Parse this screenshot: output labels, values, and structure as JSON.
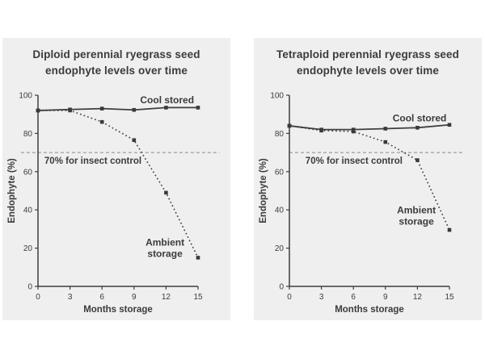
{
  "page": {
    "background": "#ffffff",
    "panel_background": "#efefef"
  },
  "colors": {
    "series_line": "#3f3f3f",
    "marker": "#3a3a3a",
    "axis": "#3f3f3f",
    "text": "#3b3b3b",
    "tick_text": "#3d3d3d",
    "threshold_line": "#9c9c9c"
  },
  "chart_data": [
    {
      "type": "line",
      "id": "diploid",
      "title_lines": [
        "Diploid perennial ryegrass seed",
        "endophyte levels over time"
      ],
      "xlabel": "Months storage",
      "ylabel": "Endophyte (%)",
      "xlim": [
        0,
        15
      ],
      "ylim": [
        0,
        100
      ],
      "x_ticks": [
        0,
        3,
        6,
        9,
        12,
        15
      ],
      "y_ticks": [
        0,
        20,
        40,
        60,
        80,
        100
      ],
      "grid": false,
      "legend_position": "inline-labels",
      "threshold": {
        "value": 70,
        "label": "70% for insect control",
        "label_x": 0.6,
        "extent_months": [
          -1.6,
          17.0
        ]
      },
      "months": [
        0,
        3,
        6,
        9,
        12,
        15
      ],
      "series": [
        {
          "id": "cool-stored",
          "name": "Cool stored",
          "style": "solid",
          "values": [
            92,
            92.5,
            93,
            92.3,
            93.5,
            93.5
          ],
          "label_lines": [
            "Cool stored"
          ],
          "label_pos": {
            "x": 12.1,
            "y": 97.5
          }
        },
        {
          "id": "ambient-storage",
          "name": "Ambient storage",
          "style": "dotted",
          "values": [
            92,
            92,
            86,
            76.5,
            49,
            15
          ],
          "label_lines": [
            "Ambient",
            "storage"
          ],
          "label_pos": {
            "x": 11.9,
            "y": 20
          }
        }
      ]
    },
    {
      "type": "line",
      "id": "tetraploid",
      "title_lines": [
        "Tetraploid perennial ryegrass seed",
        "endophyte levels over time"
      ],
      "xlabel": "Months storage",
      "ylabel": "Endophyte (%)",
      "xlim": [
        0,
        15
      ],
      "ylim": [
        0,
        100
      ],
      "x_ticks": [
        0,
        3,
        6,
        9,
        12,
        15
      ],
      "y_ticks": [
        0,
        20,
        40,
        60,
        80,
        100
      ],
      "grid": false,
      "legend_position": "inline-labels",
      "threshold": {
        "value": 70,
        "label": "70% for insect control",
        "label_x": 1.5,
        "extent_months": [
          0,
          16.4
        ]
      },
      "months": [
        0,
        3,
        6,
        9,
        12,
        15
      ],
      "series": [
        {
          "id": "cool-stored",
          "name": "Cool stored",
          "style": "solid",
          "values": [
            84,
            82,
            82,
            82.5,
            83,
            84.5
          ],
          "label_lines": [
            "Cool stored"
          ],
          "label_pos": {
            "x": 12.2,
            "y": 88
          }
        },
        {
          "id": "ambient-storage",
          "name": "Ambient storage",
          "style": "dotted",
          "values": [
            84,
            81.5,
            81,
            75.5,
            66,
            29.5
          ],
          "label_lines": [
            "Ambient",
            "storage"
          ],
          "label_pos": {
            "x": 11.9,
            "y": 37
          }
        }
      ]
    }
  ]
}
